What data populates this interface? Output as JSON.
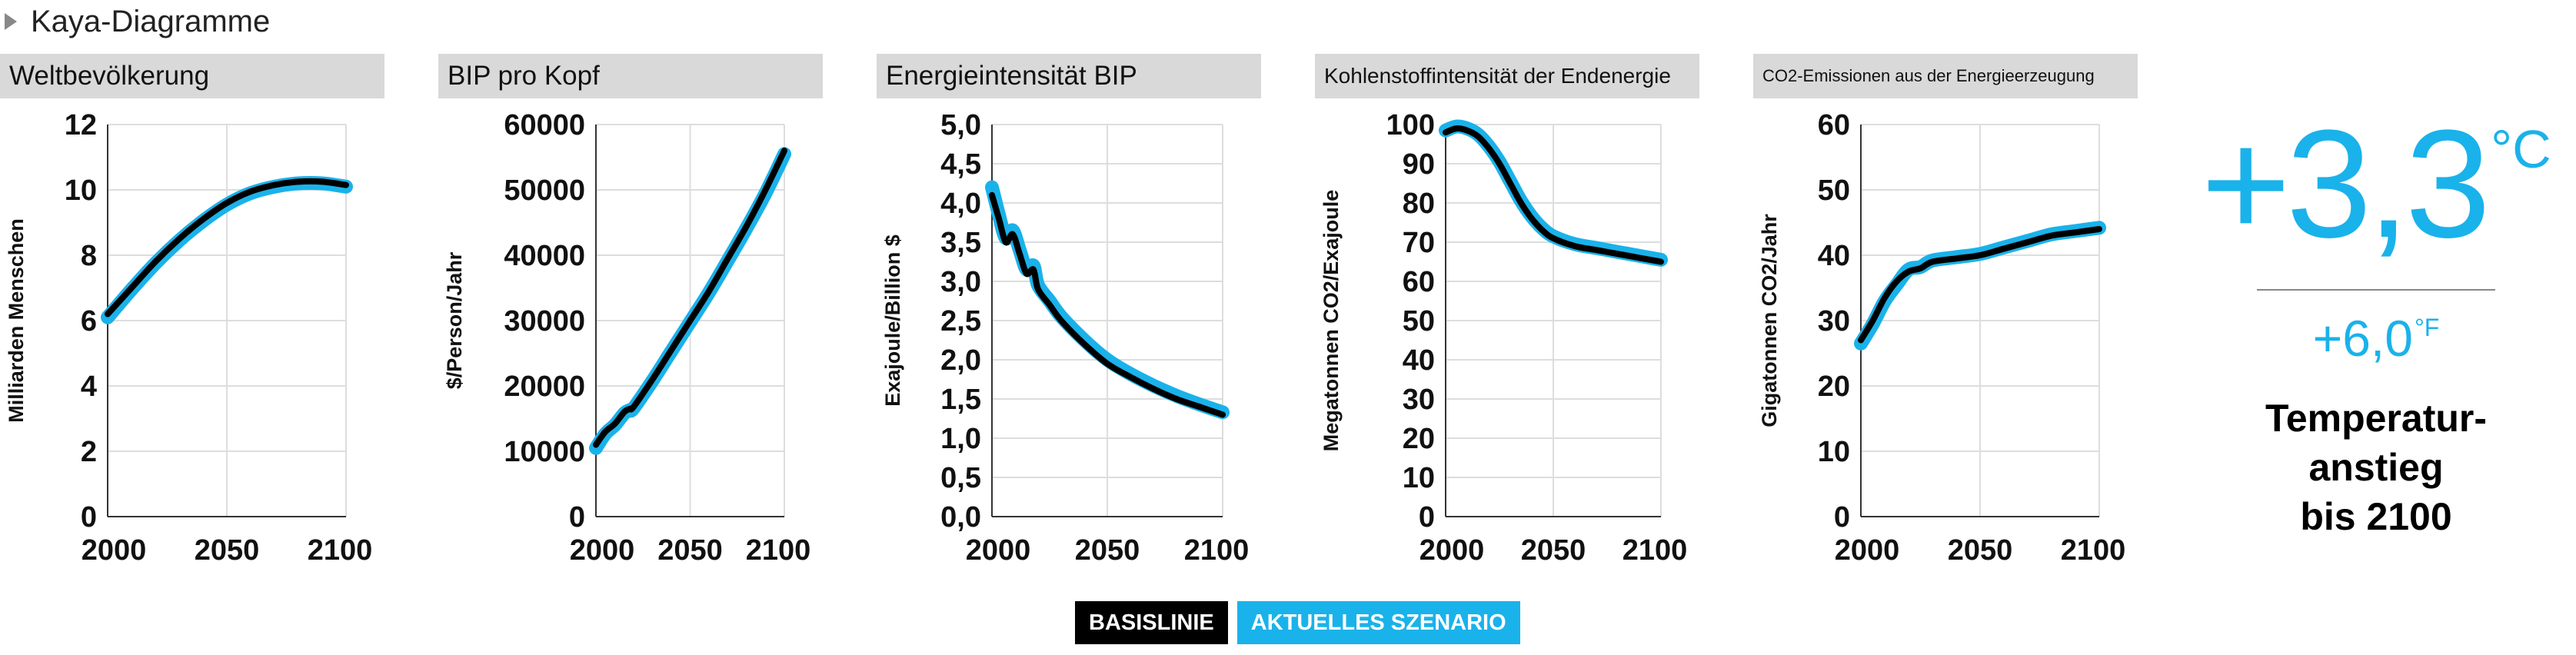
{
  "header": {
    "title": "Kaya-Diagramme",
    "arrow_icon": "caret-right-icon"
  },
  "colors": {
    "baseline": "#000000",
    "scenario": "#1ab2ea",
    "panel_title_bg": "#d9d9d9"
  },
  "chart_data": [
    {
      "type": "line",
      "title": "Weltbevölkerung",
      "ylabel": "Milliarden Menschen",
      "xlim": [
        2000,
        2100
      ],
      "ylim": [
        0,
        12
      ],
      "xticks": [
        "2000",
        "2050",
        "2100"
      ],
      "yticks": [
        "0",
        "2",
        "4",
        "6",
        "8",
        "10",
        "12"
      ],
      "x": [
        2000,
        2010,
        2020,
        2030,
        2040,
        2050,
        2060,
        2070,
        2080,
        2090,
        2100
      ],
      "series": [
        {
          "name": "BASISLINIE",
          "values": [
            6.2,
            7.0,
            7.8,
            8.5,
            9.1,
            9.6,
            9.95,
            10.15,
            10.25,
            10.25,
            10.15
          ]
        },
        {
          "name": "AKTUELLES SZENARIO",
          "values": [
            6.1,
            6.95,
            7.75,
            8.45,
            9.05,
            9.55,
            9.9,
            10.1,
            10.2,
            10.2,
            10.1
          ]
        }
      ]
    },
    {
      "type": "line",
      "title": "BIP pro Kopf",
      "ylabel": "$/Person/Jahr",
      "xlim": [
        2000,
        2100
      ],
      "ylim": [
        0,
        60000
      ],
      "xticks": [
        "2000",
        "2050",
        "2100"
      ],
      "yticks": [
        "0",
        "10000",
        "20000",
        "30000",
        "40000",
        "50000",
        "60000"
      ],
      "x": [
        2000,
        2005,
        2010,
        2015,
        2018,
        2020,
        2030,
        2040,
        2050,
        2060,
        2070,
        2080,
        2090,
        2100
      ],
      "series": [
        {
          "name": "BASISLINIE",
          "values": [
            11000,
            13000,
            14200,
            16000,
            16500,
            16800,
            21000,
            25500,
            30000,
            34500,
            39500,
            44500,
            50000,
            56000
          ]
        },
        {
          "name": "AKTUELLES SZENARIO",
          "values": [
            10500,
            12700,
            14000,
            15800,
            16300,
            16600,
            20800,
            25300,
            29800,
            34300,
            39200,
            44200,
            49500,
            55500
          ]
        }
      ]
    },
    {
      "type": "line",
      "title": "Energieintensität BIP",
      "ylabel": "Exajoule/Billion $",
      "xlim": [
        2000,
        2100
      ],
      "ylim": [
        0,
        5
      ],
      "xticks": [
        "2000",
        "2050",
        "2100"
      ],
      "yticks": [
        "0,0",
        "0,5",
        "1,0",
        "1,5",
        "2,0",
        "2,5",
        "3,0",
        "3,5",
        "4,0",
        "4,5",
        "5,0"
      ],
      "x": [
        2000,
        2003,
        2006,
        2009,
        2012,
        2015,
        2018,
        2020,
        2025,
        2030,
        2040,
        2050,
        2060,
        2070,
        2080,
        2090,
        2100
      ],
      "series": [
        {
          "name": "BASISLINIE",
          "values": [
            4.1,
            3.8,
            3.5,
            3.6,
            3.35,
            3.1,
            3.15,
            2.9,
            2.7,
            2.5,
            2.2,
            1.95,
            1.78,
            1.63,
            1.5,
            1.4,
            1.3
          ]
        },
        {
          "name": "AKTUELLES SZENARIO",
          "values": [
            4.2,
            3.85,
            3.55,
            3.65,
            3.4,
            3.15,
            3.2,
            2.95,
            2.75,
            2.55,
            2.25,
            2.0,
            1.82,
            1.67,
            1.54,
            1.43,
            1.33
          ]
        }
      ]
    },
    {
      "type": "line",
      "title": "Kohlenstoffintensität der Endenergie",
      "ylabel": "Megatonnen CO2/Exajoule",
      "xlim": [
        2000,
        2100
      ],
      "ylim": [
        0,
        100
      ],
      "xticks": [
        "2000",
        "2050",
        "2100"
      ],
      "yticks": [
        "0",
        "10",
        "20",
        "30",
        "40",
        "50",
        "60",
        "70",
        "80",
        "90",
        "100"
      ],
      "x": [
        2000,
        2005,
        2010,
        2015,
        2020,
        2025,
        2030,
        2035,
        2040,
        2045,
        2050,
        2060,
        2070,
        2080,
        2090,
        2100
      ],
      "series": [
        {
          "name": "BASISLINIE",
          "values": [
            98,
            99,
            98.5,
            97,
            94,
            90,
            85,
            80,
            76,
            73,
            71,
            69,
            68,
            67,
            66,
            65
          ]
        },
        {
          "name": "AKTUELLES SZENARIO",
          "values": [
            98.5,
            99.5,
            99,
            97.5,
            94.5,
            90.5,
            85.5,
            80.5,
            76.5,
            73.5,
            71.5,
            69.5,
            68.5,
            67.5,
            66.5,
            65.5
          ]
        }
      ]
    },
    {
      "type": "line",
      "title": "CO2-Emissionen aus der Energieerzeugung",
      "ylabel": "Gigatonnen CO2/Jahr",
      "xlim": [
        2000,
        2100
      ],
      "ylim": [
        0,
        60
      ],
      "xticks": [
        "2000",
        "2050",
        "2100"
      ],
      "yticks": [
        "0",
        "10",
        "20",
        "30",
        "40",
        "50",
        "60"
      ],
      "x": [
        2000,
        2005,
        2010,
        2015,
        2020,
        2025,
        2030,
        2040,
        2050,
        2060,
        2070,
        2080,
        2090,
        2100
      ],
      "series": [
        {
          "name": "BASISLINIE",
          "values": [
            27,
            30,
            33.5,
            36,
            37.5,
            38,
            39,
            39.5,
            40,
            41,
            42,
            43,
            43.5,
            44
          ]
        },
        {
          "name": "AKTUELLES SZENARIO",
          "values": [
            26.5,
            29.5,
            33,
            35.5,
            37.8,
            38.2,
            39.2,
            39.7,
            40.2,
            41.2,
            42.2,
            43.2,
            43.7,
            44.2
          ]
        }
      ]
    }
  ],
  "result": {
    "celsius_value": "+3,3",
    "celsius_unit": "°C",
    "fahrenheit_value": "+6,0",
    "fahrenheit_unit": "°F",
    "caption_line1": "Temperatur-",
    "caption_line2": "anstieg",
    "caption_line3": "bis 2100"
  },
  "legend": {
    "baseline_label": "BASISLINIE",
    "scenario_label": "AKTUELLES SZENARIO"
  }
}
